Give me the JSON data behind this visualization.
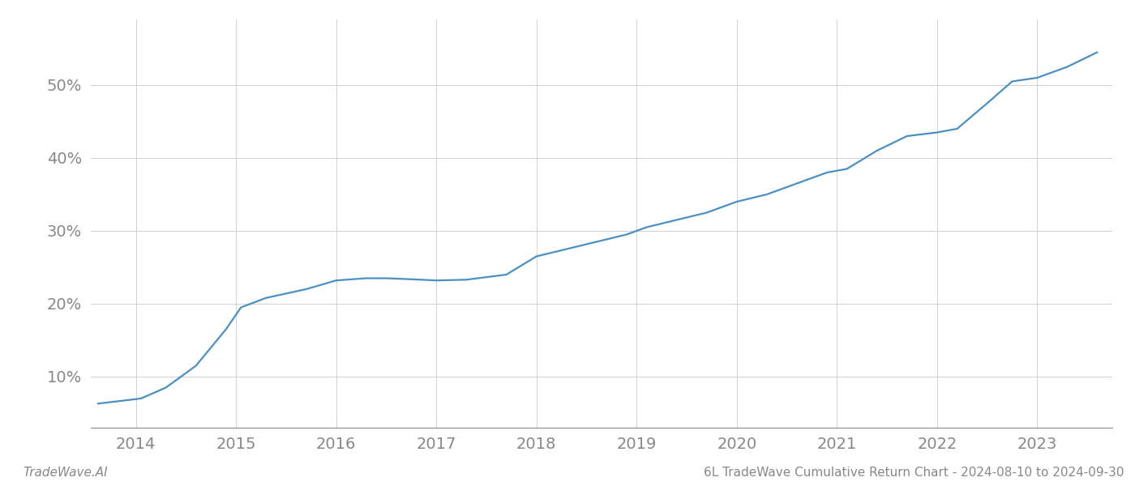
{
  "title": "",
  "footer_left": "TradeWave.AI",
  "footer_right": "6L TradeWave Cumulative Return Chart - 2024-08-10 to 2024-09-30",
  "line_color": "#4a90c4",
  "background_color": "#ffffff",
  "grid_color": "#d0d0d0",
  "x_years": [
    2013.62,
    2014.05,
    2014.3,
    2014.6,
    2014.9,
    2015.05,
    2015.3,
    2015.7,
    2016.0,
    2016.3,
    2016.5,
    2016.85,
    2017.0,
    2017.3,
    2017.7,
    2018.0,
    2018.3,
    2018.6,
    2018.9,
    2019.1,
    2019.4,
    2019.7,
    2020.0,
    2020.3,
    2020.6,
    2020.9,
    2021.1,
    2021.4,
    2021.7,
    2022.0,
    2022.2,
    2022.5,
    2022.75,
    2023.0,
    2023.3,
    2023.6
  ],
  "y_values": [
    6.3,
    7.0,
    8.5,
    11.5,
    16.5,
    19.5,
    20.8,
    22.0,
    23.2,
    23.5,
    23.5,
    23.3,
    23.2,
    23.3,
    24.0,
    26.5,
    27.5,
    28.5,
    29.5,
    30.5,
    31.5,
    32.5,
    34.0,
    35.0,
    36.5,
    38.0,
    38.5,
    41.0,
    43.0,
    43.5,
    44.0,
    47.5,
    50.5,
    51.0,
    52.5,
    54.5
  ],
  "yticks": [
    10,
    20,
    30,
    40,
    50
  ],
  "xticks": [
    2014,
    2015,
    2016,
    2017,
    2018,
    2019,
    2020,
    2021,
    2022,
    2023
  ],
  "xlim": [
    2013.55,
    2023.75
  ],
  "ylim": [
    3,
    59
  ],
  "line_width": 1.6,
  "footer_fontsize": 11,
  "tick_fontsize": 14,
  "tick_color": "#888888",
  "spine_color": "#888888"
}
